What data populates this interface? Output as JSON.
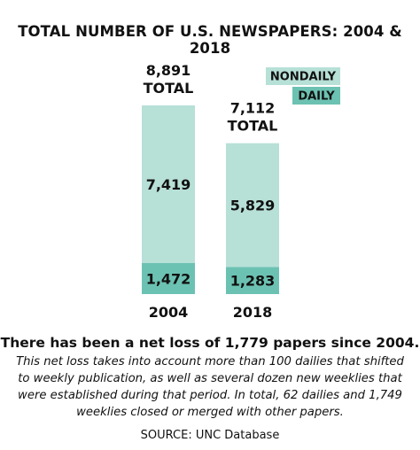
{
  "chart_data": {
    "type": "bar",
    "stacked": true,
    "title": "TOTAL NUMBER OF U.S. NEWSPAPERS: 2004 & 2018",
    "categories": [
      "2004",
      "2018"
    ],
    "series": [
      {
        "name": "DAILY",
        "values": [
          1472,
          1283
        ],
        "labels": [
          "1,472",
          "1,283"
        ],
        "color": "#6cc2b2"
      },
      {
        "name": "NONDAILY",
        "values": [
          7419,
          5829
        ],
        "labels": [
          "7,419",
          "5,829"
        ],
        "color": "#b7e0d7"
      }
    ],
    "totals": [
      {
        "value": 8891,
        "number": "8,891",
        "word": "TOTAL"
      },
      {
        "value": 7112,
        "number": "7,112",
        "word": "TOTAL"
      }
    ],
    "legend_position": "top-right",
    "ylim": [
      0,
      8891
    ]
  },
  "headline": "There has been a net loss of 1,779 papers since 2004.",
  "note": "This net loss takes into account more than 100 dailies that shifted to weekly publication, as well as several dozen new weeklies that were established during that period. In total, 62 dailies and 1,749 weeklies closed or merged with other papers.",
  "source": "SOURCE: UNC Database"
}
